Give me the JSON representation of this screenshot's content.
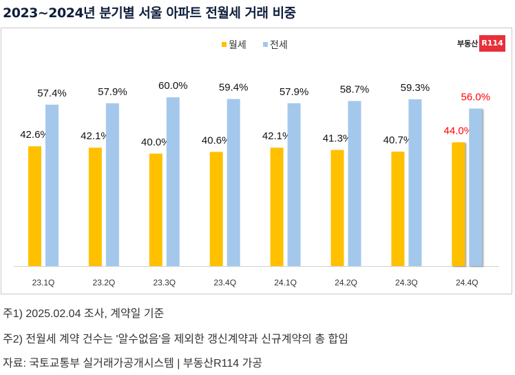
{
  "title": "2023~2024년 분기별 서울 아파트 전월세 거래 비중",
  "logo": {
    "text": "부동산",
    "mark": "R114"
  },
  "notes": [
    "주1) 2025.02.04 조사, 계약일 기준",
    "주2) 전월세 계약 건수는 '알수없음'을 제외한 갱신계약과 신규계약의 총 합임",
    "자료: 국토교통부 실거래가공개시스템 | 부동산R114 가공"
  ],
  "chart_data": {
    "type": "bar",
    "title": "",
    "categories": [
      "23.1Q",
      "23.2Q",
      "23.3Q",
      "23.4Q",
      "24.1Q",
      "24.2Q",
      "24.3Q",
      "24.4Q"
    ],
    "series": [
      {
        "name": "월세",
        "color": "#ffc000",
        "values": [
          42.6,
          42.1,
          40.0,
          40.6,
          42.1,
          41.3,
          40.7,
          44.0
        ],
        "labels": [
          "42.6%",
          "42.1%",
          "40.0%",
          "40.6%",
          "42.1%",
          "41.3%",
          "40.7%",
          "44.0%"
        ]
      },
      {
        "name": "전세",
        "color": "#a4c8ec",
        "values": [
          57.4,
          57.9,
          60.0,
          59.4,
          57.9,
          58.7,
          59.3,
          56.0
        ],
        "labels": [
          "57.4%",
          "57.9%",
          "60.0%",
          "59.4%",
          "57.9%",
          "58.7%",
          "59.3%",
          "56.0%"
        ]
      }
    ],
    "highlight_category": "24.4Q",
    "highlight_label_color": "#ff0000",
    "ylim": [
      0,
      100
    ],
    "grid": false,
    "legend": "top-center"
  }
}
